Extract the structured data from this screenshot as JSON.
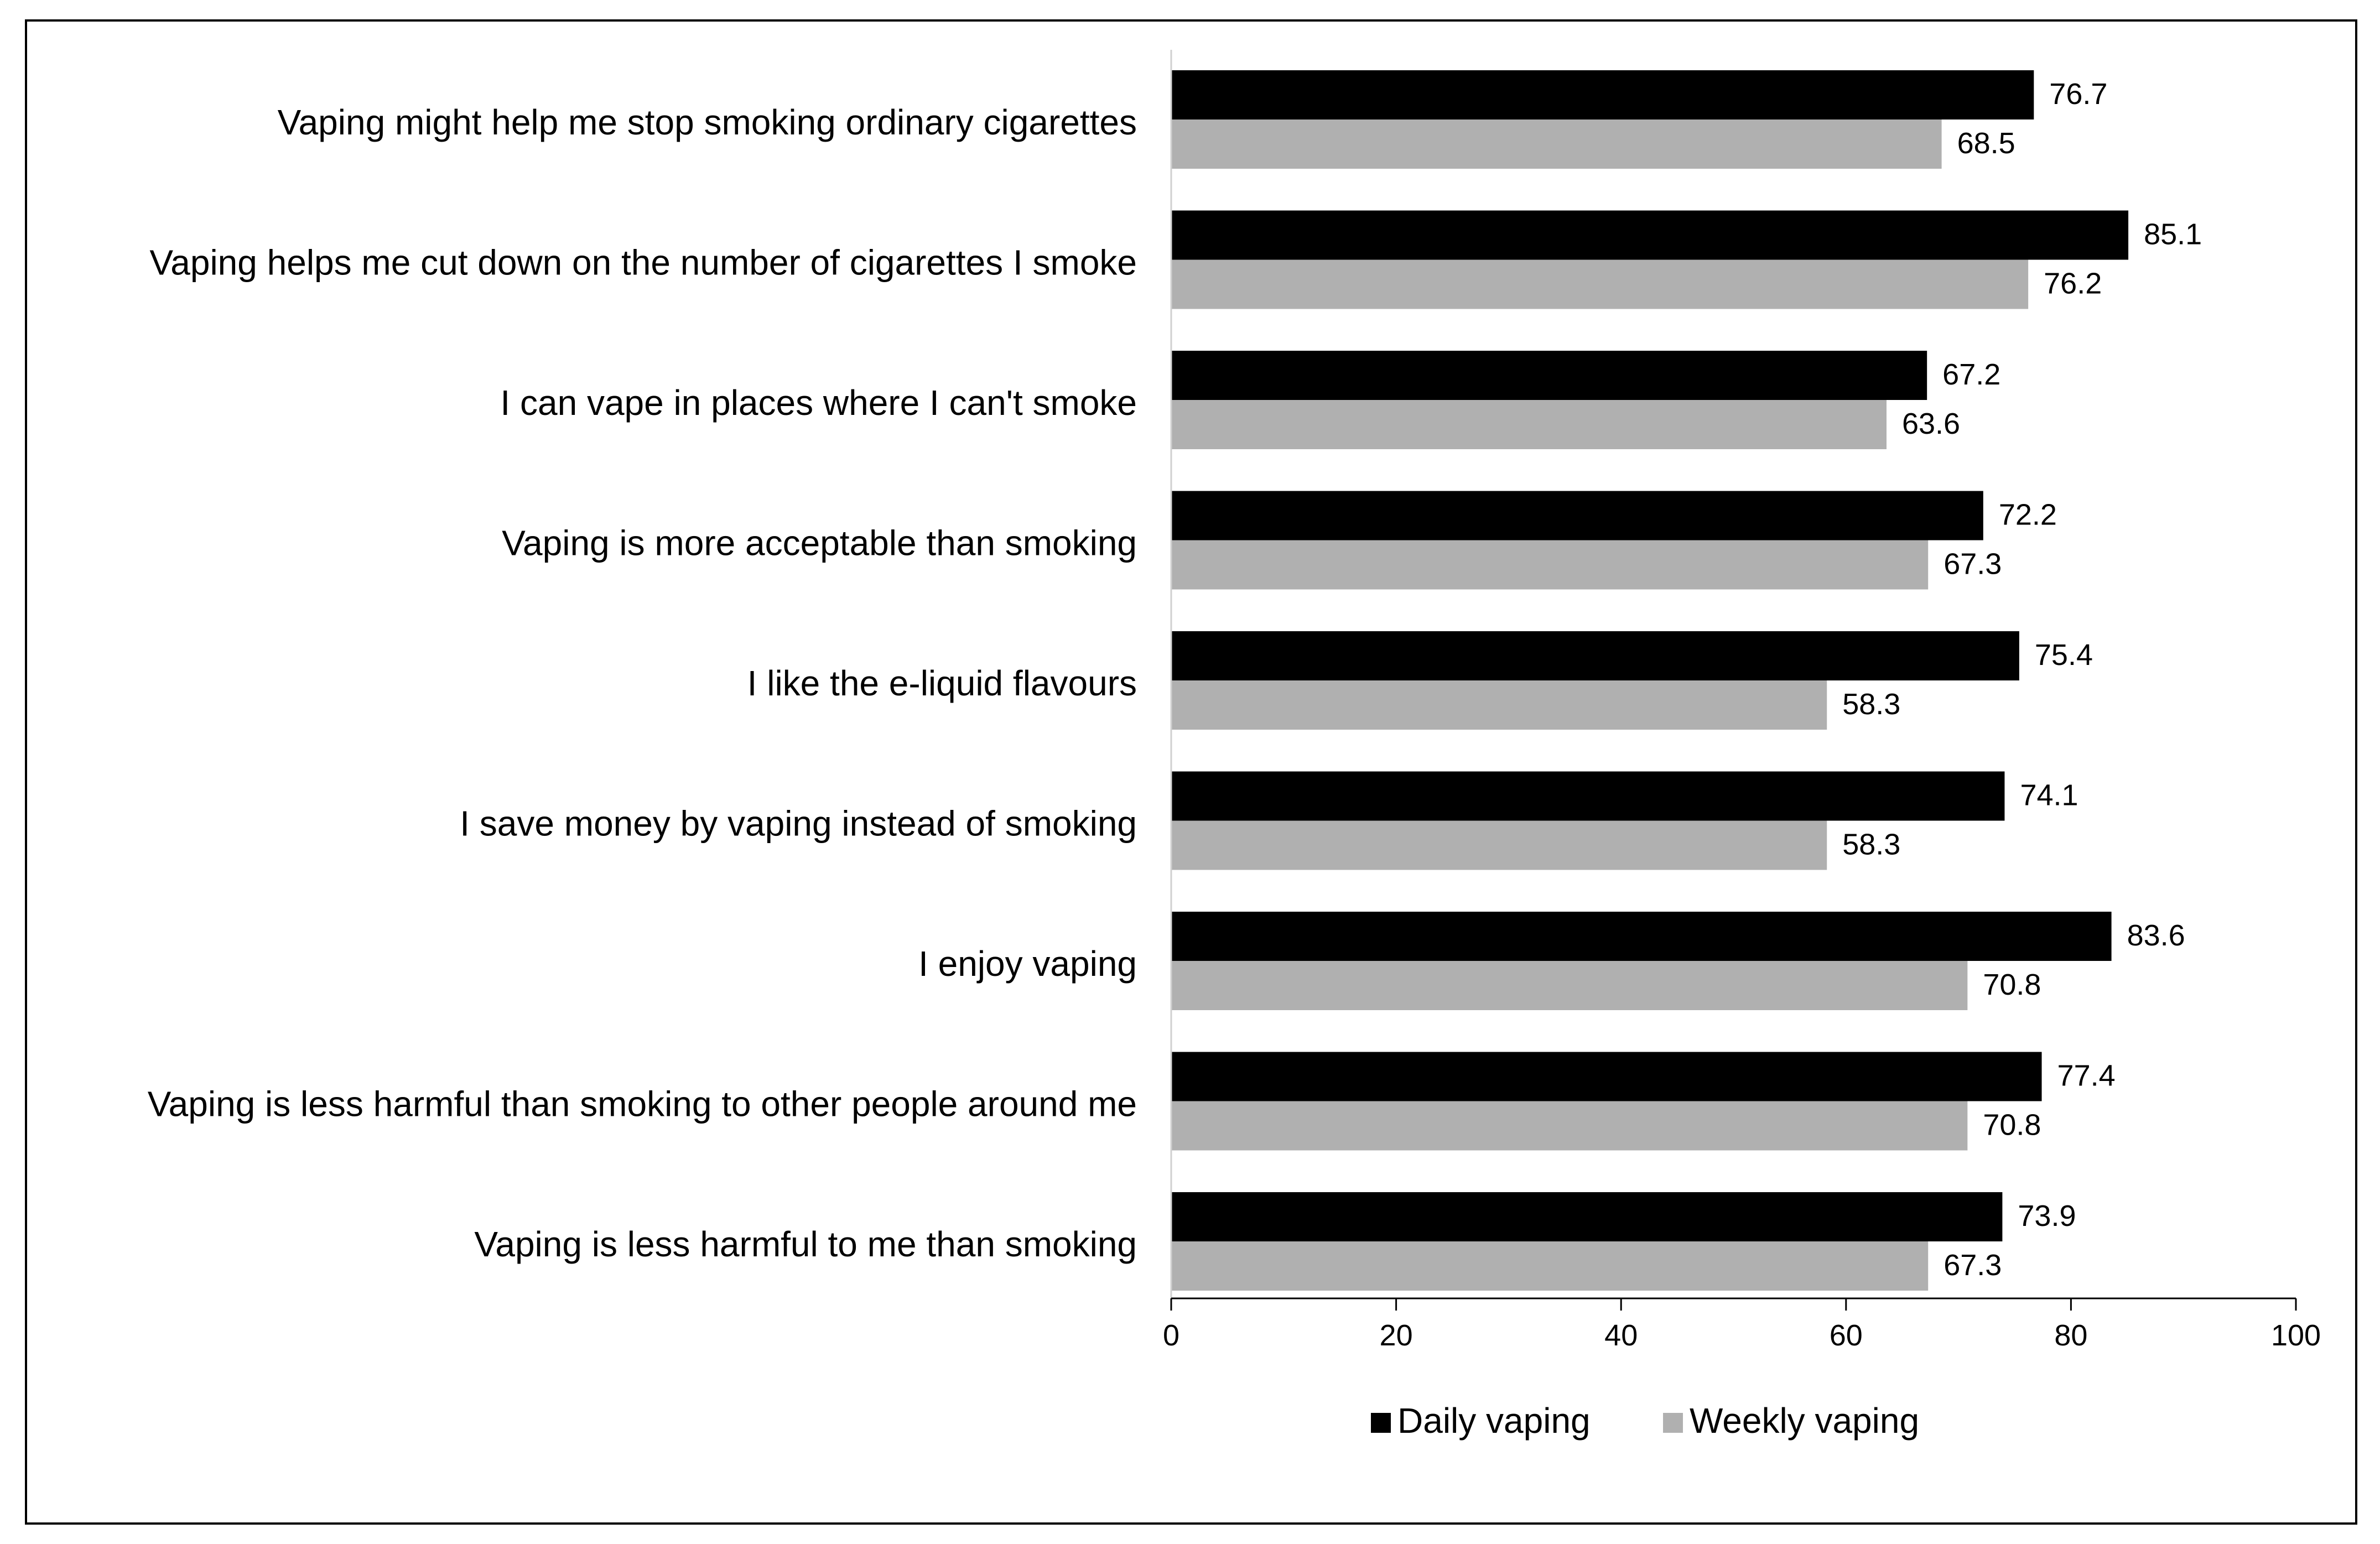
{
  "chart_data": {
    "type": "bar",
    "orientation": "horizontal",
    "categories": [
      "Vaping might help me stop smoking ordinary cigarettes",
      "Vaping helps me cut down on the number of cigarettes I smoke",
      "I can vape in places where I can't smoke",
      "Vaping is more acceptable than smoking",
      "I like the e-liquid flavours",
      "I save money by vaping instead of smoking",
      "I enjoy vaping",
      "Vaping is less harmful than smoking to other people around me",
      "Vaping is less harmful to me than smoking"
    ],
    "series": [
      {
        "name": "Daily vaping",
        "color": "#000000",
        "values": [
          76.7,
          85.1,
          67.2,
          72.2,
          75.4,
          74.1,
          83.6,
          77.4,
          73.9
        ],
        "labels": [
          "76.7",
          "85.1",
          "67.2",
          "72.2",
          "75.4",
          "74.1",
          "83.6",
          "77.4",
          "73.9"
        ]
      },
      {
        "name": "Weekly vaping",
        "color": "#b0b0b0",
        "values": [
          68.5,
          76.2,
          63.6,
          67.3,
          58.3,
          58.3,
          70.8,
          70.8,
          67.3
        ],
        "labels": [
          "68.5",
          "76.2",
          "63.6",
          "67.3",
          "58.3",
          "58.3",
          "70.8",
          "70.8",
          "67.3"
        ]
      }
    ],
    "xlim": [
      0,
      100
    ],
    "xticks": [
      0,
      20,
      40,
      60,
      80,
      100
    ],
    "xtick_labels": [
      "0",
      "20",
      "40",
      "60",
      "80",
      "100"
    ],
    "grid": false,
    "legend_position": "bottom"
  }
}
